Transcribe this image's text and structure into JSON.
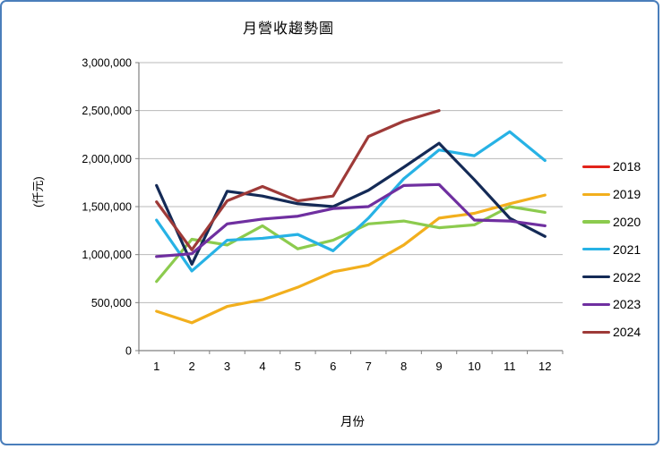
{
  "window": {
    "border_color": "#4a7ebb",
    "background_color": "#ffffff"
  },
  "chart_data": {
    "type": "line",
    "title": "月營收趨勢圖",
    "xlabel": "月份",
    "ylabel": "(仟元)",
    "x_categories": [
      1,
      2,
      3,
      4,
      5,
      6,
      7,
      8,
      9,
      10,
      11,
      12
    ],
    "ylim": [
      0,
      3000000
    ],
    "yticks": [
      0,
      500000,
      1000000,
      1500000,
      2000000,
      2500000,
      3000000
    ],
    "grid": "horizontal-only",
    "legend_position": "right",
    "axis_color": "#808080",
    "grid_color": "#b8b8b8",
    "series": [
      {
        "name": "2018",
        "color": "#e2231a",
        "values": []
      },
      {
        "name": "2019",
        "color": "#f2af1d",
        "values": [
          410000,
          290000,
          460000,
          530000,
          660000,
          820000,
          890000,
          1100000,
          1380000,
          1430000,
          1530000,
          1620000
        ]
      },
      {
        "name": "2020",
        "color": "#8ccb4e",
        "values": [
          720000,
          1160000,
          1100000,
          1300000,
          1060000,
          1150000,
          1320000,
          1350000,
          1280000,
          1310000,
          1500000,
          1440000
        ]
      },
      {
        "name": "2021",
        "color": "#27b2e5",
        "values": [
          1360000,
          830000,
          1150000,
          1170000,
          1210000,
          1040000,
          1380000,
          1790000,
          2090000,
          2030000,
          2280000,
          1980000
        ]
      },
      {
        "name": "2022",
        "color": "#142a56",
        "values": [
          1720000,
          900000,
          1660000,
          1610000,
          1530000,
          1500000,
          1670000,
          1910000,
          2160000,
          1780000,
          1380000,
          1190000
        ]
      },
      {
        "name": "2023",
        "color": "#6f2fa0",
        "values": [
          980000,
          1010000,
          1320000,
          1370000,
          1400000,
          1480000,
          1500000,
          1720000,
          1730000,
          1360000,
          1350000,
          1300000
        ]
      },
      {
        "name": "2024",
        "color": "#9e3a38",
        "values": [
          1550000,
          1050000,
          1560000,
          1710000,
          1560000,
          1610000,
          2230000,
          2390000,
          2500000
        ]
      }
    ]
  }
}
